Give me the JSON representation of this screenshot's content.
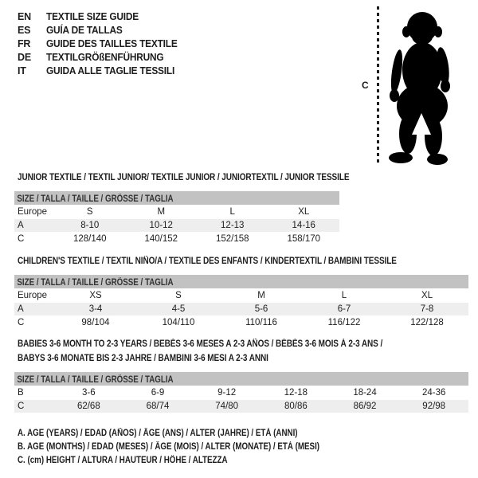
{
  "language_list": [
    {
      "code": "EN",
      "title": "TEXTILE SIZE GUIDE"
    },
    {
      "code": "ES",
      "title": "GUÍA DE TALLAS"
    },
    {
      "code": "FR",
      "title": "GUIDE DES TAILLES TEXTILE"
    },
    {
      "code": "DE",
      "title": "TEXTILGRÖßENFÜHRUNG"
    },
    {
      "code": "IT",
      "title": "GUIDA ALLE TAGLIE TESSILI"
    }
  ],
  "figure": {
    "height_label": "C",
    "image": "toddler-silhouette"
  },
  "sections": [
    {
      "heading_lines": [
        "JUNIOR TEXTILE / TEXTIL JUNIOR/ TEXTILE JUNIOR / JUNIORTEXTIL / JUNIOR TESSILE"
      ],
      "table": {
        "header": "SIZE / TALLA / TAILLE / GRÖSSE / TAGLIA",
        "rows": [
          {
            "label": "Europe",
            "shaded": false,
            "values": [
              "S",
              "M",
              "L",
              "XL"
            ]
          },
          {
            "label": "A",
            "shaded": true,
            "values": [
              "8-10",
              "10-12",
              "12-13",
              "14-16"
            ]
          },
          {
            "label": "C",
            "shaded": false,
            "values": [
              "128/140",
              "140/152",
              "152/158",
              "158/170"
            ]
          }
        ]
      }
    },
    {
      "heading_lines": [
        "CHILDREN'S TEXTILE / TEXTIL NIÑO/A / TEXTILE DES ENFANTS / KINDERTEXTIL / BAMBINI TESSILE"
      ],
      "table": {
        "header": "SIZE / TALLA / TAILLE / GRÖSSE / TAGLIA",
        "rows": [
          {
            "label": "Europe",
            "shaded": false,
            "values": [
              "XS",
              "S",
              "M",
              "L",
              "XL"
            ]
          },
          {
            "label": "A",
            "shaded": true,
            "values": [
              "3-4",
              "4-5",
              "5-6",
              "6-7",
              "7-8"
            ]
          },
          {
            "label": "C",
            "shaded": false,
            "values": [
              "98/104",
              "104/110",
              "110/116",
              "116/122",
              "122/128"
            ]
          }
        ]
      }
    },
    {
      "heading_lines": [
        "BABIES 3-6 MONTH TO 2-3 YEARS / BEBÉS 3-6 MESES A 2-3 AÑOS / BÉBÉS 3-6 MOIS À 2-3 ANS /",
        "BABYS 3-6 MONATE BIS 2-3 JAHRE / BAMBINI 3-6 MESI A 2-3 ANNI"
      ],
      "table": {
        "header": "SIZE / TALLA / TAILLE / GRÖSSE / TAGLIA",
        "rows": [
          {
            "label": "B",
            "shaded": false,
            "values": [
              "3-6",
              "6-9",
              "9-12",
              "12-18",
              "18-24",
              "24-36"
            ]
          },
          {
            "label": "C",
            "shaded": true,
            "values": [
              "62/68",
              "68/74",
              "74/80",
              "80/86",
              "86/92",
              "92/98"
            ]
          }
        ]
      }
    }
  ],
  "footnotes": [
    "A. AGE (YEARS) / EDAD (AÑOS) / ÂGE (ANS) / ALTER (JAHRE) / ETÀ (ANNI)",
    "B. AGE (MONTHS) / EDAD (MESES) / ÂGE (MOIS) / ALTER (MONATE) / ETÀ (MESI)",
    "C. (cm) HEIGHT / ALTURA / HAUTEUR / HÖHE / ALTEZZA"
  ],
  "colors": {
    "table_header_band": "#c2c2c2",
    "shaded_row": "#eeeeee",
    "text": "#1d1d1d",
    "background": "#ffffff"
  }
}
